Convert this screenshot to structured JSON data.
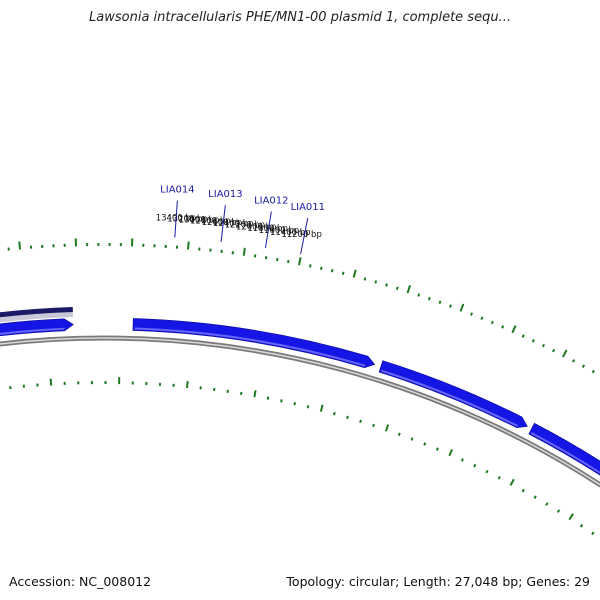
{
  "title": "Lawsonia intracellularis PHE/MN1-00 plasmid 1, complete sequ...",
  "footer": {
    "accession": "Accession: NC_008012",
    "summary": "Topology: circular; Length: 27,048 bp; Genes: 29"
  },
  "chart_data": {
    "type": "circular-genome-map",
    "topology": "circular",
    "length_bp": 27048,
    "gene_count": 29,
    "visible_range_bp": [
      11100,
      13600
    ],
    "tick_labels": [
      "11200 bp",
      "11400 bp",
      "11600 bp",
      "11800 bp",
      "12000 bp",
      "12200 bp",
      "12400 bp",
      "12600 bp",
      "12800 bp",
      "13000 bp",
      "13200 bp",
      "13400 bp"
    ],
    "ticks_bp": [
      11200,
      11400,
      11600,
      11800,
      12000,
      12200,
      12400,
      12600,
      12800,
      13000,
      13200,
      13400
    ],
    "genes": [
      {
        "name": "LIA011",
        "pointer_bp": 11160
      },
      {
        "name": "LIA012",
        "pointer_bp": 11790
      },
      {
        "name": "LIA013",
        "pointer_bp": 12580
      },
      {
        "name": "LIA014",
        "pointer_bp": 13400
      }
    ],
    "colors": {
      "gene": "#1515e6",
      "gene_highlight": "#7b7bff",
      "gene_dark": "#1a1a66",
      "backbone": "#7a7a7a",
      "ticks": "#1f7a1f",
      "labels": "#1a1aa0"
    }
  }
}
